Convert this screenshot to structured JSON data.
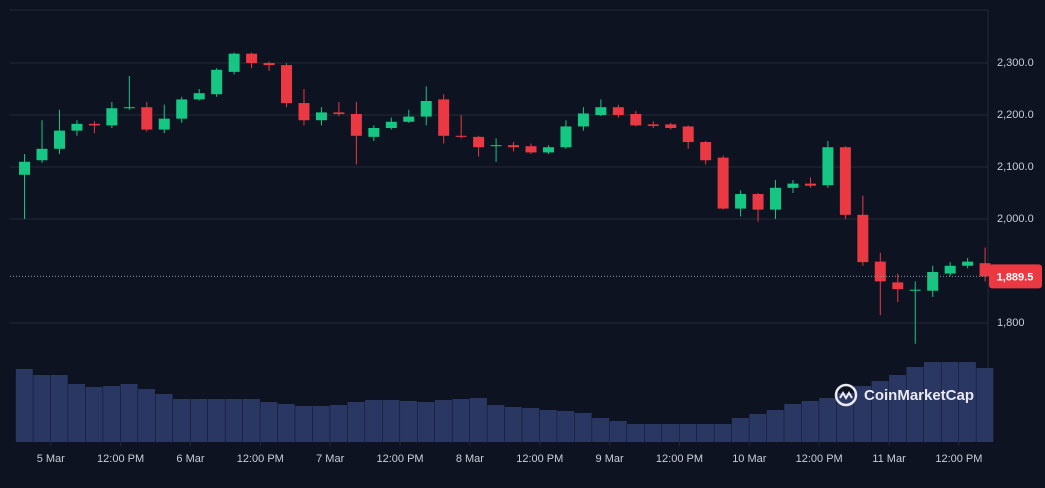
{
  "chart_data": {
    "type": "candlestick",
    "x": [
      -4.5,
      -1.5,
      1.5,
      4.5,
      7.5,
      10.5,
      13.5,
      16.5,
      19.5,
      22.5,
      25.5,
      28.5,
      31.5,
      34.5,
      37.5,
      40.5,
      43.5,
      46.5,
      49.5,
      52.5,
      55.5,
      58.5,
      61.5,
      64.5,
      67.5,
      70.5,
      73.5,
      76.5,
      79.5,
      82.5,
      85.5,
      88.5,
      91.5,
      94.5,
      97.5,
      100.5,
      103.5,
      106.5,
      109.5,
      112.5,
      115.5,
      118.5,
      121.5,
      124.5,
      127.5,
      130.5,
      133.5,
      136.5,
      139.5,
      142.5,
      145.5,
      148.5,
      151.5,
      154.5,
      157.5,
      160.5
    ],
    "open": [
      2085,
      2113,
      2135,
      2170,
      2183,
      2180,
      2213,
      2215,
      2172,
      2193,
      2230,
      2240,
      2283,
      2318,
      2300,
      2296,
      2223,
      2190,
      2205,
      2202,
      2158,
      2175,
      2187,
      2197,
      2230,
      2160,
      2158,
      2140,
      2142,
      2140,
      2128,
      2138,
      2178,
      2200,
      2215,
      2202,
      2182,
      2182,
      2178,
      2148,
      2118,
      2020,
      2048,
      2018,
      2060,
      2068,
      2065,
      2138,
      2008,
      1918,
      1878,
      1862,
      1862,
      1895,
      1910,
      1915
    ],
    "high": [
      2125,
      2190,
      2210,
      2190,
      2188,
      2225,
      2275,
      2225,
      2220,
      2235,
      2250,
      2290,
      2320,
      2320,
      2303,
      2300,
      2250,
      2215,
      2225,
      2225,
      2180,
      2195,
      2210,
      2255,
      2240,
      2200,
      2160,
      2155,
      2148,
      2145,
      2142,
      2190,
      2215,
      2230,
      2220,
      2208,
      2188,
      2185,
      2180,
      2150,
      2122,
      2055,
      2050,
      2075,
      2075,
      2080,
      2150,
      2140,
      2045,
      1935,
      1895,
      1880,
      1910,
      1917,
      1925,
      1945
    ],
    "low": [
      2000,
      2108,
      2125,
      2160,
      2165,
      2175,
      2210,
      2168,
      2165,
      2185,
      2228,
      2235,
      2278,
      2290,
      2285,
      2215,
      2180,
      2180,
      2198,
      2105,
      2150,
      2172,
      2185,
      2180,
      2145,
      2155,
      2120,
      2110,
      2130,
      2125,
      2125,
      2135,
      2170,
      2198,
      2195,
      2178,
      2175,
      2172,
      2135,
      2105,
      2018,
      2005,
      1995,
      2000,
      2050,
      2060,
      2060,
      2000,
      1910,
      1815,
      1840,
      1760,
      1850,
      1890,
      1905,
      1880
    ],
    "close": [
      2110,
      2135,
      2170,
      2183,
      2180,
      2213,
      2215,
      2172,
      2193,
      2230,
      2242,
      2287,
      2318,
      2300,
      2296,
      2223,
      2190,
      2205,
      2202,
      2160,
      2175,
      2187,
      2197,
      2227,
      2160,
      2158,
      2138,
      2142,
      2138,
      2128,
      2138,
      2178,
      2203,
      2215,
      2200,
      2180,
      2179,
      2175,
      2148,
      2113,
      2020,
      2048,
      2018,
      2060,
      2068,
      2064,
      2138,
      2008,
      1917,
      1880,
      1865,
      1864,
      1898,
      1910,
      1918,
      1889.5
    ],
    "volume": [
      73,
      67,
      67,
      58,
      55,
      56,
      58,
      53,
      48,
      43,
      43,
      43,
      43,
      43,
      40,
      38,
      36,
      36,
      37,
      40,
      42,
      42,
      41,
      40,
      42,
      43,
      44,
      37,
      35,
      34,
      32,
      31,
      29,
      24,
      21,
      18,
      18,
      18,
      18,
      18,
      18,
      24,
      28,
      32,
      38,
      41,
      44,
      49,
      56,
      61,
      67,
      75,
      80,
      80,
      80,
      74
    ],
    "volume_ylim": [
      0,
      100
    ],
    "xlim": [
      -7,
      161
    ],
    "xticks": [
      {
        "value": 0,
        "label": "5 Mar"
      },
      {
        "value": 12,
        "label": "12:00 PM"
      },
      {
        "value": 24,
        "label": "6 Mar"
      },
      {
        "value": 36,
        "label": "12:00 PM"
      },
      {
        "value": 48,
        "label": "7 Mar"
      },
      {
        "value": 60,
        "label": "12:00 PM"
      },
      {
        "value": 72,
        "label": "8 Mar"
      },
      {
        "value": 84,
        "label": "12:00 PM"
      },
      {
        "value": 96,
        "label": "9 Mar"
      },
      {
        "value": 108,
        "label": "12:00 PM"
      },
      {
        "value": 120,
        "label": "10 Mar"
      },
      {
        "value": 132,
        "label": "12:00 PM"
      },
      {
        "value": 144,
        "label": "11 Mar"
      },
      {
        "value": 156,
        "label": "12:00 PM"
      }
    ],
    "ylim": [
      1571,
      2402
    ],
    "yticks": [
      {
        "value": 1800,
        "label": "1,800"
      },
      {
        "value": 2000,
        "label": "2,000.0"
      },
      {
        "value": 2100,
        "label": "2,100.0"
      },
      {
        "value": 2200,
        "label": "2,200.0"
      },
      {
        "value": 2300,
        "label": "2,300.0"
      }
    ],
    "last_price": {
      "value": 1889.5,
      "label": "1,889.5"
    },
    "watermark": "CoinMarketCap",
    "up_color": "#16c784",
    "down_color": "#ea3943",
    "volume_color": "#2b3763",
    "grid": true
  }
}
